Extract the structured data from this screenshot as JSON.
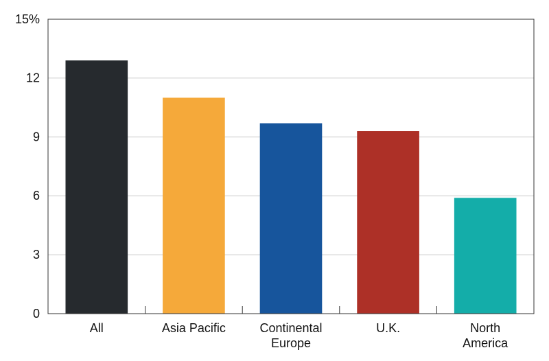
{
  "chart_data": {
    "type": "bar",
    "categories": [
      "All",
      "Asia Pacific",
      "Continental\nEurope",
      "U.K.",
      "North\nAmerica"
    ],
    "values": [
      12.9,
      11.0,
      9.7,
      9.3,
      5.9
    ],
    "colors": [
      "#262a2e",
      "#f5a93a",
      "#17559c",
      "#ad3027",
      "#14ada9"
    ],
    "ylim": [
      0,
      15
    ],
    "yticks": [
      0,
      3,
      6,
      9,
      12,
      {
        "value": 15,
        "label": "15%"
      }
    ],
    "grid": true
  }
}
